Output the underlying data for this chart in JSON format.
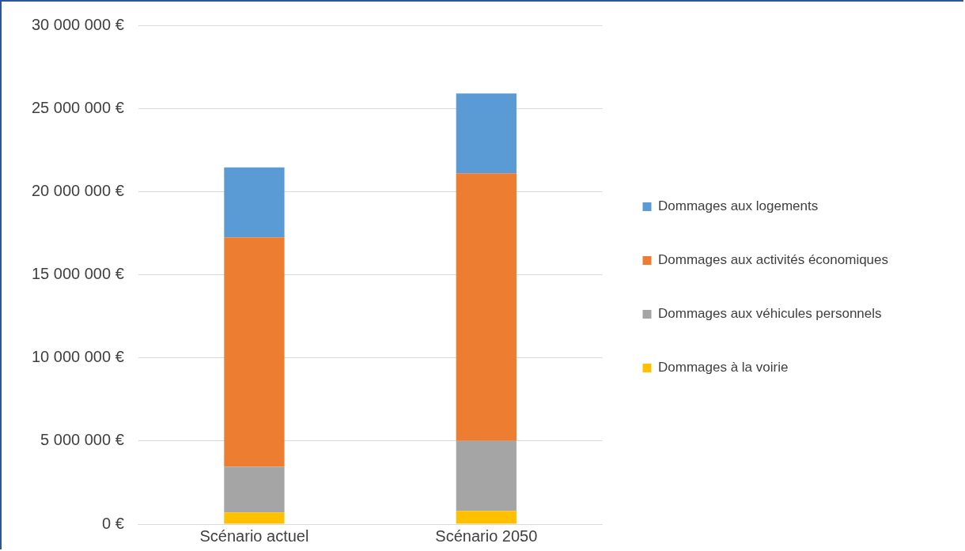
{
  "chart_data": {
    "type": "bar",
    "stacked": true,
    "categories": [
      "Scénario actuel",
      "Scénario 2050"
    ],
    "series": [
      {
        "name": "Dommages à la voirie",
        "color": "#ffc000",
        "values": [
          700000,
          800000
        ]
      },
      {
        "name": "Dommages aux véhicules personnels",
        "color": "#a5a5a5",
        "values": [
          2750000,
          4200000
        ]
      },
      {
        "name": "Dommages aux activités économiques",
        "color": "#ed7d31",
        "values": [
          13800000,
          16100000
        ]
      },
      {
        "name": "Dommages aux logements",
        "color": "#5b9bd5",
        "values": [
          4200000,
          4800000
        ]
      }
    ],
    "ylim": [
      0,
      30000000
    ],
    "yticks": [
      {
        "value": 0,
        "label": "0 €"
      },
      {
        "value": 5000000,
        "label": "5 000 000 €"
      },
      {
        "value": 10000000,
        "label": "10 000 000 €"
      },
      {
        "value": 15000000,
        "label": "15 000 000 €"
      },
      {
        "value": 20000000,
        "label": "20 000 000 €"
      },
      {
        "value": 25000000,
        "label": "25 000 000 €"
      },
      {
        "value": 30000000,
        "label": "30 000 000 €"
      }
    ],
    "grid": "y",
    "legend": "right"
  }
}
